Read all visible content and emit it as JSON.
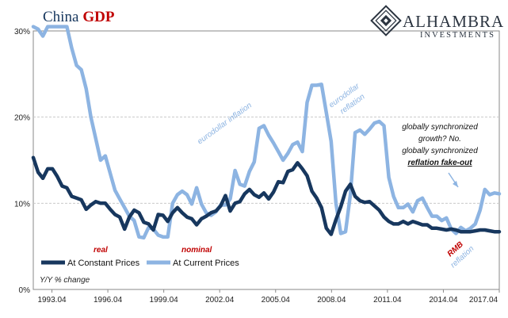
{
  "title_part1": "China",
  "title_part2": "GDP",
  "logo": {
    "name": "ALHAMBRA",
    "sub": "INVESTMENTS"
  },
  "colors": {
    "constant": "#17375e",
    "current": "#8db4e2",
    "title_red": "#c00000",
    "title_dark": "#17375e",
    "anno_blue": "#8db4e2",
    "anno_red": "#c00000",
    "grid": "#c9c9c9"
  },
  "annotations": {
    "eurodollar_inflation": "eurodollar inflation",
    "eurodollar": "eurodollar",
    "reflation": "reflation",
    "real": "real",
    "nominal": "nominal",
    "globally1": "globally synchronized",
    "globally2": "growth?  No.",
    "globally3": "globally synchronized",
    "globally4": "reflation fake-out",
    "rmb": "RMB",
    "rmb_reflation": "reflation",
    "units": "Y/Y % change"
  },
  "chart_data": {
    "type": "line",
    "title": "China GDP",
    "ylabel": "Y/Y % change",
    "ylim": [
      0,
      30
    ],
    "yticks": [
      "0%",
      "10%",
      "20%",
      "30%"
    ],
    "xticks": [
      "1993.04",
      "1996.04",
      "1999.04",
      "2002.04",
      "2005.04",
      "2008.04",
      "2011.04",
      "2014.04",
      "2017.04"
    ],
    "x_start": "1992.04",
    "x_end": "2017.04",
    "grid": true,
    "legend_position": "bottom-left",
    "series": [
      {
        "name": "At Constant Prices",
        "values": [
          15.3,
          13.6,
          12.9,
          14.0,
          14.0,
          13.1,
          12.0,
          11.8,
          10.8,
          10.6,
          10.4,
          9.3,
          9.8,
          10.2,
          10.0,
          10.0,
          9.3,
          8.7,
          8.4,
          7.0,
          8.4,
          9.2,
          8.9,
          7.8,
          7.6,
          6.9,
          8.7,
          8.6,
          7.9,
          8.9,
          9.5,
          8.9,
          8.4,
          8.2,
          7.5,
          8.2,
          8.5,
          8.9,
          9.1,
          9.7,
          10.9,
          9.1,
          10.0,
          10.2,
          11.1,
          11.6,
          11.0,
          10.7,
          11.2,
          10.5,
          11.3,
          12.5,
          12.4,
          13.7,
          13.9,
          14.7,
          14.0,
          13.2,
          11.4,
          10.6,
          9.5,
          7.1,
          6.4,
          8.1,
          9.6,
          11.4,
          12.2,
          10.8,
          10.3,
          10.1,
          10.2,
          9.7,
          9.2,
          8.4,
          7.9,
          7.6,
          7.6,
          7.9,
          7.6,
          7.9,
          7.7,
          7.5,
          7.5,
          7.1,
          7.1,
          7.0,
          6.9,
          7.0,
          6.9,
          6.7,
          6.7,
          6.7,
          6.8,
          6.9,
          6.9,
          6.8,
          6.7,
          6.7
        ]
      },
      {
        "name": "At Current Prices",
        "values": [
          30.5,
          30.2,
          29.4,
          30.5,
          30.5,
          30.5,
          30.5,
          30.5,
          28.0,
          26.0,
          25.5,
          23.3,
          20.0,
          17.5,
          15.0,
          15.5,
          13.5,
          11.5,
          10.5,
          9.5,
          8.5,
          8.0,
          6.1,
          6.0,
          7.2,
          7.0,
          6.3,
          6.1,
          6.1,
          10.0,
          11.0,
          11.4,
          11.0,
          9.9,
          11.8,
          9.9,
          8.9,
          8.6,
          9.0,
          9.8,
          9.8,
          10.5,
          13.8,
          12.2,
          12.0,
          13.7,
          14.8,
          18.7,
          19.0,
          17.9,
          17.0,
          16.0,
          15.0,
          15.8,
          16.8,
          17.1,
          16.0,
          21.7,
          23.7,
          23.7,
          23.8,
          20.5,
          17.2,
          10.0,
          6.5,
          6.7,
          11.0,
          18.2,
          18.5,
          18.0,
          18.6,
          19.3,
          19.5,
          19.0,
          13.0,
          10.8,
          9.5,
          9.5,
          9.9,
          9.0,
          10.3,
          10.6,
          9.5,
          8.5,
          8.5,
          8.0,
          8.3,
          7.0,
          6.5,
          7.2,
          6.8,
          7.1,
          7.6,
          9.2,
          11.6,
          11.0,
          11.2,
          11.1
        ]
      }
    ]
  }
}
